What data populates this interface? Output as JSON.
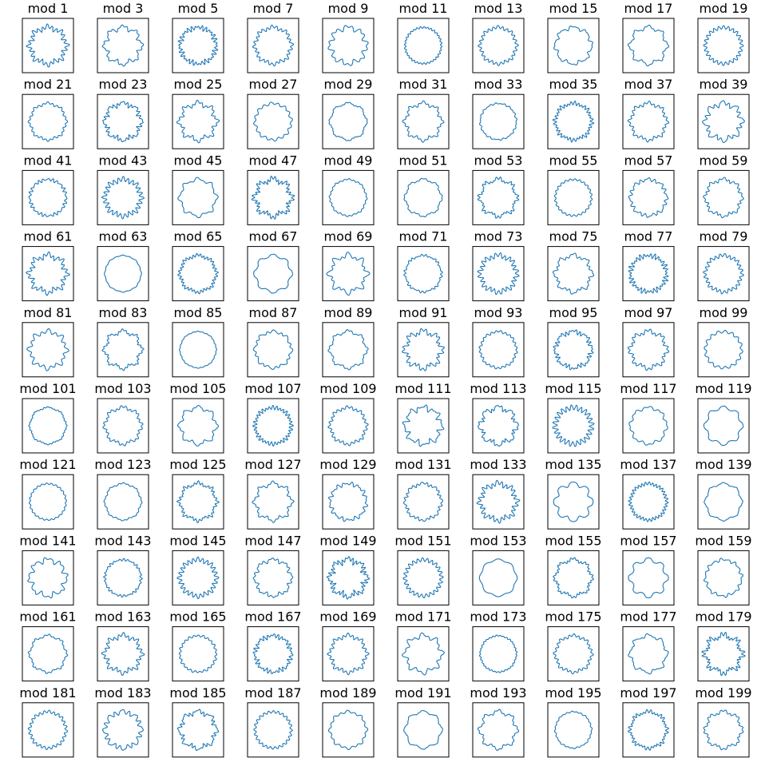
{
  "chart_data": {
    "type": "line",
    "layout": "small-multiples",
    "rows": 10,
    "cols": 10,
    "axes_visible": false,
    "grid": false,
    "line_color": "#1f77b4",
    "title_prefix": "mod",
    "titles": [
      "mod 1",
      "mod 3",
      "mod 5",
      "mod 7",
      "mod 9",
      "mod 11",
      "mod 13",
      "mod 15",
      "mod 17",
      "mod 19",
      "mod 21",
      "mod 23",
      "mod 25",
      "mod 27",
      "mod 29",
      "mod 31",
      "mod 33",
      "mod 35",
      "mod 37",
      "mod 39",
      "mod 41",
      "mod 43",
      "mod 45",
      "mod 47",
      "mod 49",
      "mod 51",
      "mod 53",
      "mod 55",
      "mod 57",
      "mod 59",
      "mod 61",
      "mod 63",
      "mod 65",
      "mod 67",
      "mod 69",
      "mod 71",
      "mod 73",
      "mod 75",
      "mod 77",
      "mod 79",
      "mod 81",
      "mod 83",
      "mod 85",
      "mod 87",
      "mod 89",
      "mod 91",
      "mod 93",
      "mod 95",
      "mod 97",
      "mod 99",
      "mod 101",
      "mod 103",
      "mod 105",
      "mod 107",
      "mod 109",
      "mod 111",
      "mod 113",
      "mod 115",
      "mod 117",
      "mod 119",
      "mod 121",
      "mod 123",
      "mod 125",
      "mod 127",
      "mod 129",
      "mod 131",
      "mod 133",
      "mod 135",
      "mod 137",
      "mod 139",
      "mod 141",
      "mod 143",
      "mod 145",
      "mod 147",
      "mod 149",
      "mod 151",
      "mod 153",
      "mod 155",
      "mod 157",
      "mod 159",
      "mod 161",
      "mod 163",
      "mod 165",
      "mod 167",
      "mod 169",
      "mod 171",
      "mod 173",
      "mod 175",
      "mod 177",
      "mod 179",
      "mod 181",
      "mod 183",
      "mod 185",
      "mod 187",
      "mod 189",
      "mod 191",
      "mod 193",
      "mod 195",
      "mod 197",
      "mod 199"
    ],
    "moduli": [
      1,
      3,
      5,
      7,
      9,
      11,
      13,
      15,
      17,
      19,
      21,
      23,
      25,
      27,
      29,
      31,
      33,
      35,
      37,
      39,
      41,
      43,
      45,
      47,
      49,
      51,
      53,
      55,
      57,
      59,
      61,
      63,
      65,
      67,
      69,
      71,
      73,
      75,
      77,
      79,
      81,
      83,
      85,
      87,
      89,
      91,
      93,
      95,
      97,
      99,
      101,
      103,
      105,
      107,
      109,
      111,
      113,
      115,
      117,
      119,
      121,
      123,
      125,
      127,
      129,
      131,
      133,
      135,
      137,
      139,
      141,
      143,
      145,
      147,
      149,
      151,
      153,
      155,
      157,
      159,
      161,
      163,
      165,
      167,
      169,
      171,
      173,
      175,
      177,
      179,
      181,
      183,
      185,
      187,
      189,
      191,
      193,
      195,
      197,
      199
    ]
  }
}
